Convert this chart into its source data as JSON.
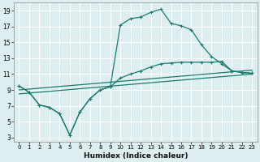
{
  "xlabel": "Humidex (Indice chaleur)",
  "bg_color": "#ddeef0",
  "grid_color": "#ffffff",
  "line_color": "#1a7a6e",
  "xlim": [
    -0.5,
    23.5
  ],
  "ylim": [
    2.5,
    20
  ],
  "xticks": [
    0,
    1,
    2,
    3,
    4,
    5,
    6,
    7,
    8,
    9,
    10,
    11,
    12,
    13,
    14,
    15,
    16,
    17,
    18,
    19,
    20,
    21,
    22,
    23
  ],
  "yticks": [
    3,
    5,
    7,
    9,
    11,
    13,
    15,
    17,
    19
  ],
  "line1_x": [
    0,
    1,
    2,
    3,
    4,
    5,
    6,
    7,
    8,
    9,
    10,
    11,
    12,
    13,
    14,
    15,
    16,
    17,
    18,
    19,
    20,
    21,
    22,
    23
  ],
  "line1_y": [
    9.5,
    8.7,
    7.1,
    6.8,
    6.0,
    3.3,
    6.2,
    7.9,
    9.0,
    9.4,
    17.2,
    18.0,
    18.2,
    18.8,
    19.2,
    17.4,
    17.1,
    16.6,
    14.7,
    13.2,
    12.3,
    11.4,
    11.2,
    11.1
  ],
  "line2_x": [
    0,
    1,
    2,
    3,
    4,
    5,
    6,
    7,
    8,
    9,
    10,
    11,
    12,
    13,
    14,
    15,
    16,
    17,
    18,
    19,
    20,
    21,
    22,
    23
  ],
  "line2_y": [
    9.5,
    8.7,
    7.1,
    6.8,
    6.0,
    3.3,
    6.2,
    7.9,
    9.0,
    9.4,
    10.5,
    11.0,
    11.4,
    11.9,
    12.3,
    12.4,
    12.5,
    12.5,
    12.5,
    12.5,
    12.6,
    11.4,
    11.2,
    11.1
  ],
  "line3_x": [
    0,
    23
  ],
  "line3_y": [
    9.0,
    11.5
  ],
  "line4_x": [
    0,
    23
  ],
  "line4_y": [
    8.5,
    11.0
  ]
}
